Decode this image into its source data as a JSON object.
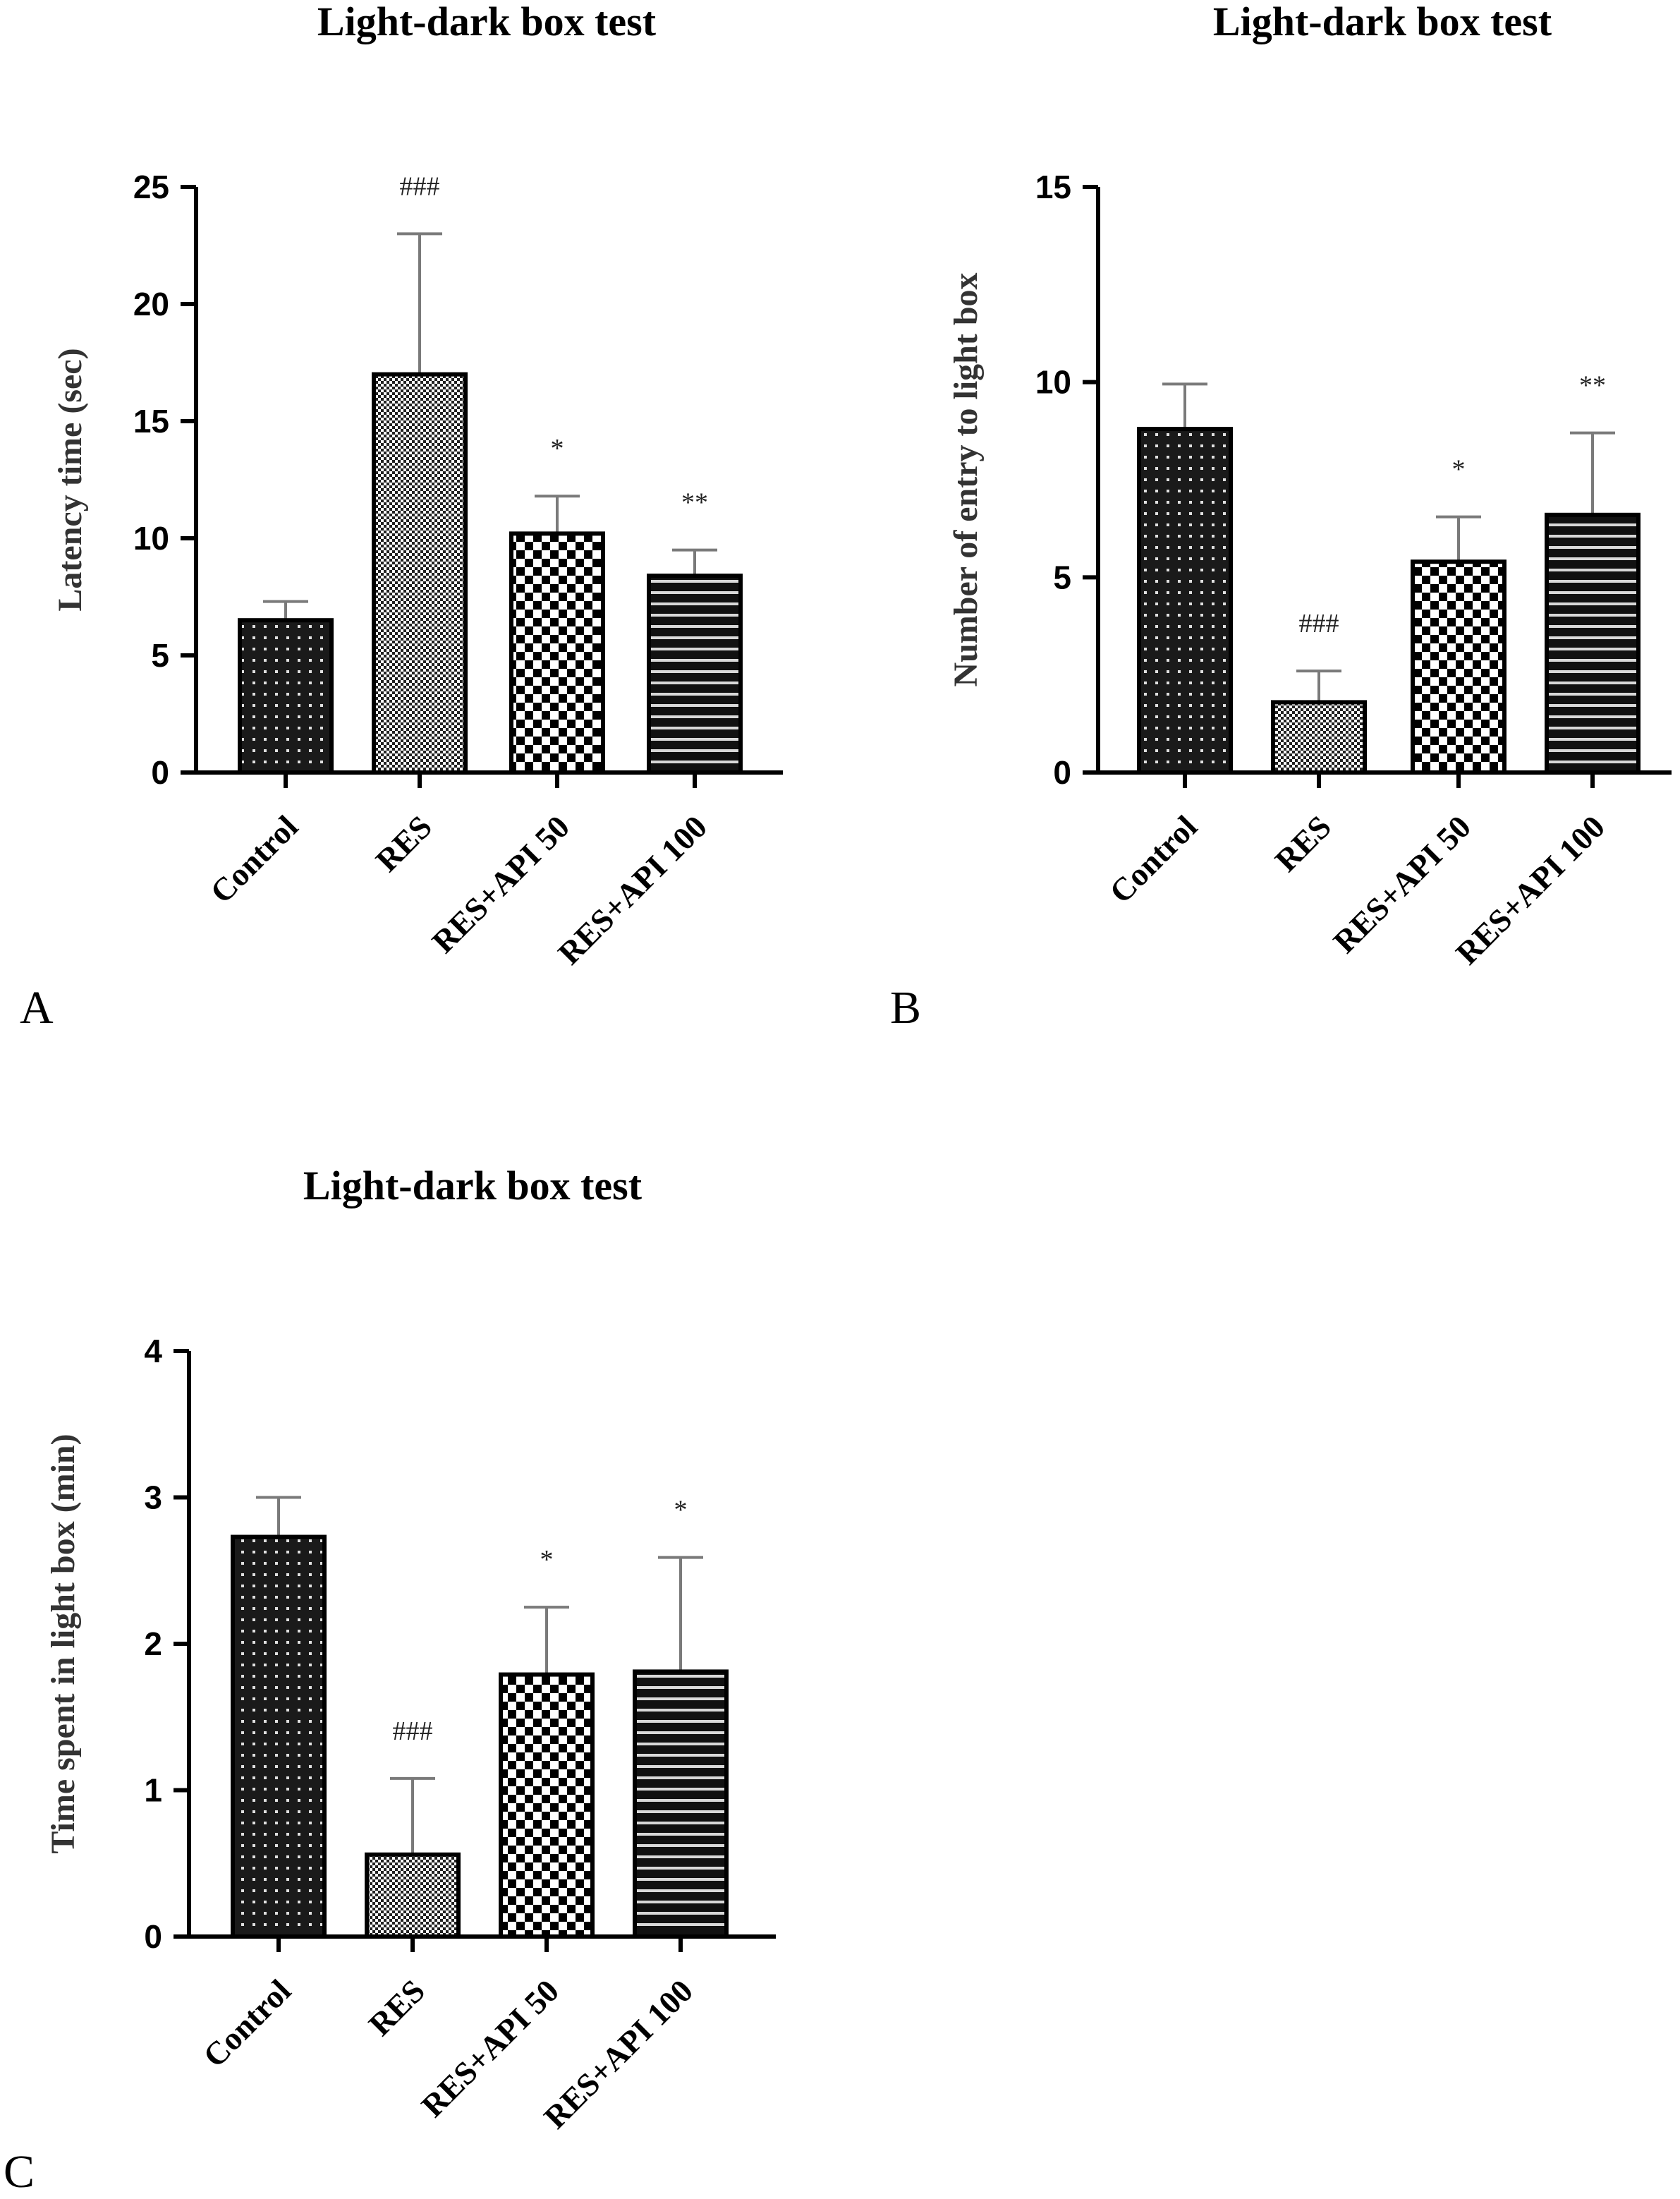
{
  "chart_data": [
    {
      "type": "bar",
      "panel": "A",
      "title": "Light-dark box test",
      "ylabel": "Latency time (sec)",
      "ylim": [
        0,
        25
      ],
      "yticks": [
        0,
        5,
        10,
        15,
        20,
        25
      ],
      "categories": [
        "Control",
        "RES",
        "RES+API 50",
        "RES+API 100"
      ],
      "values": [
        6.5,
        17.0,
        10.2,
        8.4
      ],
      "errors": [
        0.8,
        6.0,
        1.6,
        1.1
      ],
      "annotations": [
        "",
        "###",
        "*",
        "**"
      ],
      "patterns": [
        "dots",
        "fine-check",
        "checker",
        "stripes"
      ]
    },
    {
      "type": "bar",
      "panel": "B",
      "title": "Light-dark box test",
      "ylabel": "Number of entry to light box",
      "ylim": [
        0,
        15
      ],
      "yticks": [
        0,
        5,
        10,
        15
      ],
      "categories": [
        "Control",
        "RES",
        "RES+API 50",
        "RES+API 100"
      ],
      "values": [
        8.8,
        1.8,
        5.4,
        6.6
      ],
      "errors": [
        1.15,
        0.8,
        1.15,
        2.1
      ],
      "annotations": [
        "",
        "###",
        "*",
        "**"
      ],
      "patterns": [
        "dots",
        "fine-check",
        "checker",
        "stripes"
      ]
    },
    {
      "type": "bar",
      "panel": "C",
      "title": "Light-dark box test",
      "ylabel": "Time spent in light box (min)",
      "ylim": [
        0,
        4
      ],
      "yticks": [
        0,
        1,
        2,
        3,
        4
      ],
      "categories": [
        "Control",
        "RES",
        "RES+API 50",
        "RES+API 100"
      ],
      "values": [
        2.73,
        0.56,
        1.79,
        1.81
      ],
      "errors": [
        0.27,
        0.52,
        0.46,
        0.78
      ],
      "annotations": [
        "",
        "###",
        "*",
        "*"
      ],
      "patterns": [
        "dots",
        "fine-check",
        "checker",
        "stripes"
      ]
    }
  ]
}
